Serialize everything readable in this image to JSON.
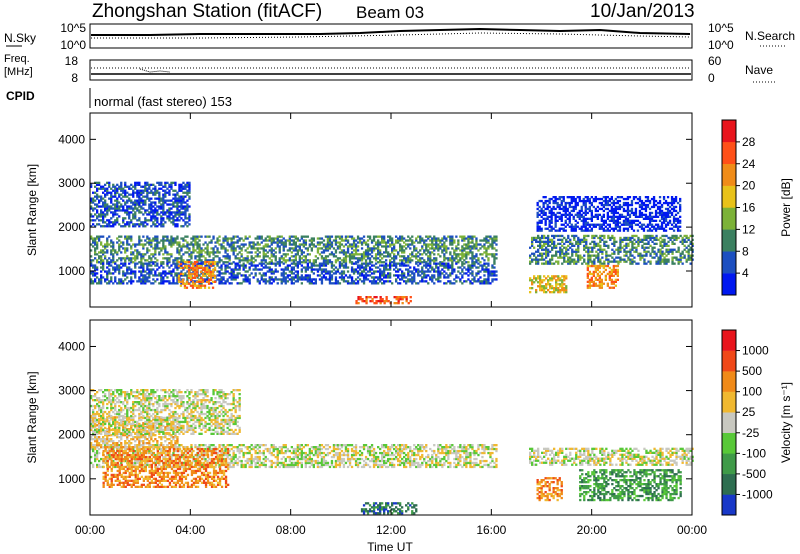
{
  "header": {
    "title": "Zhongshan Station (fitACF)",
    "beam": "Beam 03",
    "date": "10/Jan/2013"
  },
  "top_panels": {
    "nsky_label": "N.Sky",
    "nsearch_label": "N.Search",
    "nsky_ticks": [
      "10^5",
      "10^0"
    ],
    "nsearch_ticks": [
      "10^5",
      "10^0"
    ],
    "freq_label_1": "Freq.",
    "freq_label_2": "[MHz]",
    "freq_ticks": [
      "18",
      "8"
    ],
    "nave_label": "Nave",
    "nave_ticks": [
      "60",
      "0"
    ],
    "cpid_label": "CPID",
    "cpid_text": "normal (fast stereo) 153"
  },
  "chart_data": [
    {
      "type": "heatmap",
      "name": "power",
      "ylabel": "Slant Range [km]",
      "xlabel": "Time UT",
      "xlim": [
        0,
        24
      ],
      "ylim": [
        180,
        4600
      ],
      "yticks": [
        "1000",
        "2000",
        "3000",
        "4000"
      ],
      "xtick_labels": [
        "00:00",
        "04:00",
        "08:00",
        "12:00",
        "16:00",
        "20:00",
        "00:00"
      ],
      "colorbar": {
        "title": "Power [dB]",
        "labels": [
          "4",
          "8",
          "12",
          "16",
          "20",
          "24",
          "28"
        ],
        "colors": [
          "#0018f0",
          "#1c4fc0",
          "#3b8060",
          "#7cb238",
          "#e8c21a",
          "#f08c18",
          "#ff5018",
          "#e8141c"
        ]
      },
      "bands": [
        {
          "t0": 0.0,
          "t1": 16.2,
          "r0": 1180,
          "r1": 1800,
          "level": 2
        },
        {
          "t0": 0.0,
          "t1": 16.2,
          "r0": 700,
          "r1": 1180,
          "level": 1
        },
        {
          "t0": 17.5,
          "t1": 24.0,
          "r0": 1150,
          "r1": 1800,
          "level": 2
        },
        {
          "t0": 0.0,
          "t1": 4.0,
          "r0": 2000,
          "r1": 3000,
          "level": 1
        },
        {
          "t0": 3.5,
          "t1": 5.0,
          "r0": 600,
          "r1": 1200,
          "level": 5
        },
        {
          "t0": 10.5,
          "t1": 12.8,
          "r0": 250,
          "r1": 420,
          "level": 6
        },
        {
          "t0": 17.5,
          "t1": 19.0,
          "r0": 500,
          "r1": 900,
          "level": 4
        },
        {
          "t0": 19.8,
          "t1": 21.0,
          "r0": 600,
          "r1": 1100,
          "level": 5
        },
        {
          "t0": 17.8,
          "t1": 23.5,
          "r0": 1900,
          "r1": 2700,
          "level": 0
        }
      ]
    },
    {
      "type": "heatmap",
      "name": "velocity",
      "ylabel": "Slant Range [km]",
      "xlabel": "Time UT",
      "xlim": [
        0,
        24
      ],
      "ylim": [
        180,
        4600
      ],
      "yticks": [
        "1000",
        "2000",
        "3000",
        "4000"
      ],
      "xtick_labels": [
        "00:00",
        "04:00",
        "08:00",
        "12:00",
        "16:00",
        "20:00",
        "00:00"
      ],
      "colorbar": {
        "title": "Velocity [m s⁻¹]",
        "labels": [
          "1000",
          "500",
          "100",
          "25",
          "-25",
          "-100",
          "-500",
          "-1000"
        ],
        "colors": [
          "#1838c8",
          "#2e6e50",
          "#3f9a48",
          "#58c838",
          "#c8c8c0",
          "#f0b830",
          "#f08a18",
          "#f04818",
          "#e8141c"
        ]
      },
      "bands": [
        {
          "t0": 0.0,
          "t1": 16.2,
          "r0": 1250,
          "r1": 1750,
          "level": 4
        },
        {
          "t0": 17.5,
          "t1": 24.0,
          "r0": 1300,
          "r1": 1700,
          "level": 4
        },
        {
          "t0": 0.5,
          "t1": 5.5,
          "r0": 800,
          "r1": 1700,
          "level": 6
        },
        {
          "t0": 0.0,
          "t1": 3.5,
          "r0": 1700,
          "r1": 2400,
          "level": 5
        },
        {
          "t0": 10.8,
          "t1": 13.0,
          "r0": 200,
          "r1": 450,
          "level": 1
        },
        {
          "t0": 17.8,
          "t1": 18.8,
          "r0": 500,
          "r1": 1000,
          "level": 6
        },
        {
          "t0": 19.5,
          "t1": 23.5,
          "r0": 500,
          "r1": 1200,
          "level": 2
        },
        {
          "t0": 0.0,
          "t1": 6.0,
          "r0": 2000,
          "r1": 3000,
          "level": 4
        }
      ]
    }
  ]
}
